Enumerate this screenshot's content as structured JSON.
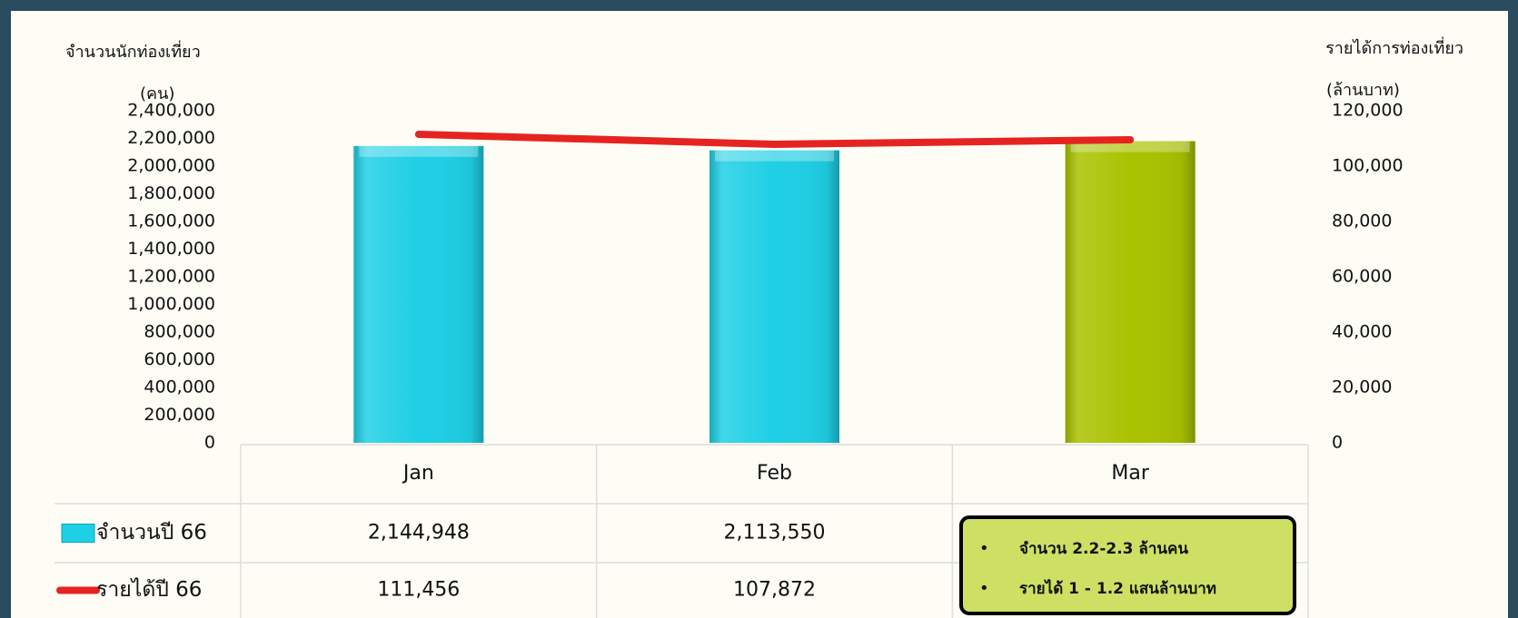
{
  "chart_data": {
    "type": "bar_line",
    "y_label": "จำนวนนักท่องเที่ยว",
    "y_unit": "(คน)",
    "y2_label": "รายได้การท่องเที่ยว",
    "y2_unit": "(ล้านบาท)",
    "categories": [
      "Jan",
      "Feb",
      "Mar"
    ],
    "series": [
      {
        "name": "จำนวนปี 66",
        "type": "bar",
        "color": "#1fcfe5",
        "colors": [
          "#1fcfe5",
          "#1fcfe5",
          "#a9c200"
        ],
        "values": [
          2144948,
          2113550,
          2180000
        ],
        "value_labels": [
          "2,144,948",
          "2,113,550",
          null
        ]
      },
      {
        "name": "รายได้ปี 66",
        "type": "line",
        "axis": "y2",
        "color": "#e52421",
        "values": [
          111456,
          107872,
          109500
        ],
        "value_labels": [
          "111,456",
          "107,872",
          null
        ]
      }
    ],
    "ylim": [
      0,
      2400000
    ],
    "yticks": [
      0,
      {
        "value": 200000,
        "label": "200,000"
      },
      {
        "value": 400000,
        "label": "400,000"
      },
      {
        "value": 600000,
        "label": "600,000"
      },
      {
        "value": 800000,
        "label": "800,000"
      },
      {
        "value": 1000000,
        "label": "1,000,000"
      },
      {
        "value": 1200000,
        "label": "1,200,000"
      },
      {
        "value": 1400000,
        "label": "1,400,000"
      },
      {
        "value": 1600000,
        "label": "1,600,000"
      },
      {
        "value": 1800000,
        "label": "1,800,000"
      },
      {
        "value": 2000000,
        "label": "2,000,000"
      },
      {
        "value": 2200000,
        "label": "2,200,000"
      },
      {
        "value": 2400000,
        "label": "2,400,000"
      }
    ],
    "y2lim": [
      0,
      120000
    ],
    "y2ticks": [
      0,
      {
        "value": 20000,
        "label": "20,000"
      },
      {
        "value": 40000,
        "label": "40,000"
      },
      {
        "value": 60000,
        "label": "60,000"
      },
      {
        "value": 80000,
        "label": "80,000"
      },
      {
        "value": 100000,
        "label": "100,000"
      },
      {
        "value": 120000,
        "label": "120,000"
      }
    ],
    "grid": false,
    "annotations": [
      "จำนวน 2.2-2.3 ล้านคน",
      "รายได้ 1 - 1.2 แสนล้านบาท"
    ]
  }
}
